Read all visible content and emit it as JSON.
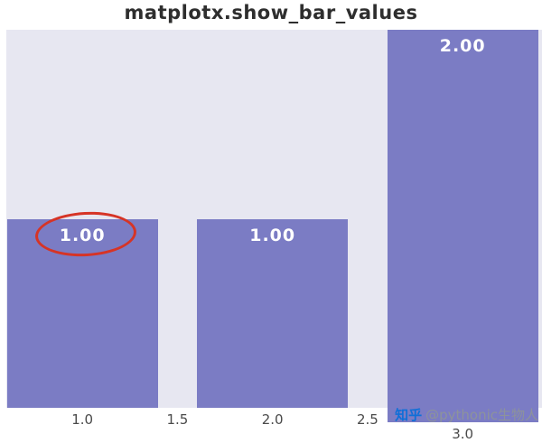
{
  "chart_data": {
    "type": "bar",
    "title": "matplotx.show_bar_values",
    "x": [
      1.0,
      2.0,
      3.0
    ],
    "values": [
      1.0,
      1.0,
      2.0
    ],
    "bar_labels": [
      "1.00",
      "1.00",
      "2.00"
    ],
    "xticks": [
      "1.0",
      "1.5",
      "2.0",
      "2.5",
      "3.0"
    ],
    "xlim": [
      0.6,
      3.42
    ],
    "ylim": [
      0,
      2
    ],
    "bar_width": 0.8,
    "grid": false,
    "legend": "none",
    "colors": {
      "bar": "#7b7cc4",
      "plot_bg": "#e7e7f1",
      "bar_label": "#ffffff",
      "tick": "#4a4a4a",
      "title": "#2e2e2e",
      "annotation": "#d63426"
    },
    "annotations": [
      {
        "type": "ellipse",
        "target": "value label of first bar (1.00)",
        "color": "#d63426"
      }
    ]
  },
  "watermark": {
    "logo": "知乎",
    "text": "@pythonic生物人",
    "logo_color": "#0f6fd8",
    "text_color": "#8d939b"
  }
}
